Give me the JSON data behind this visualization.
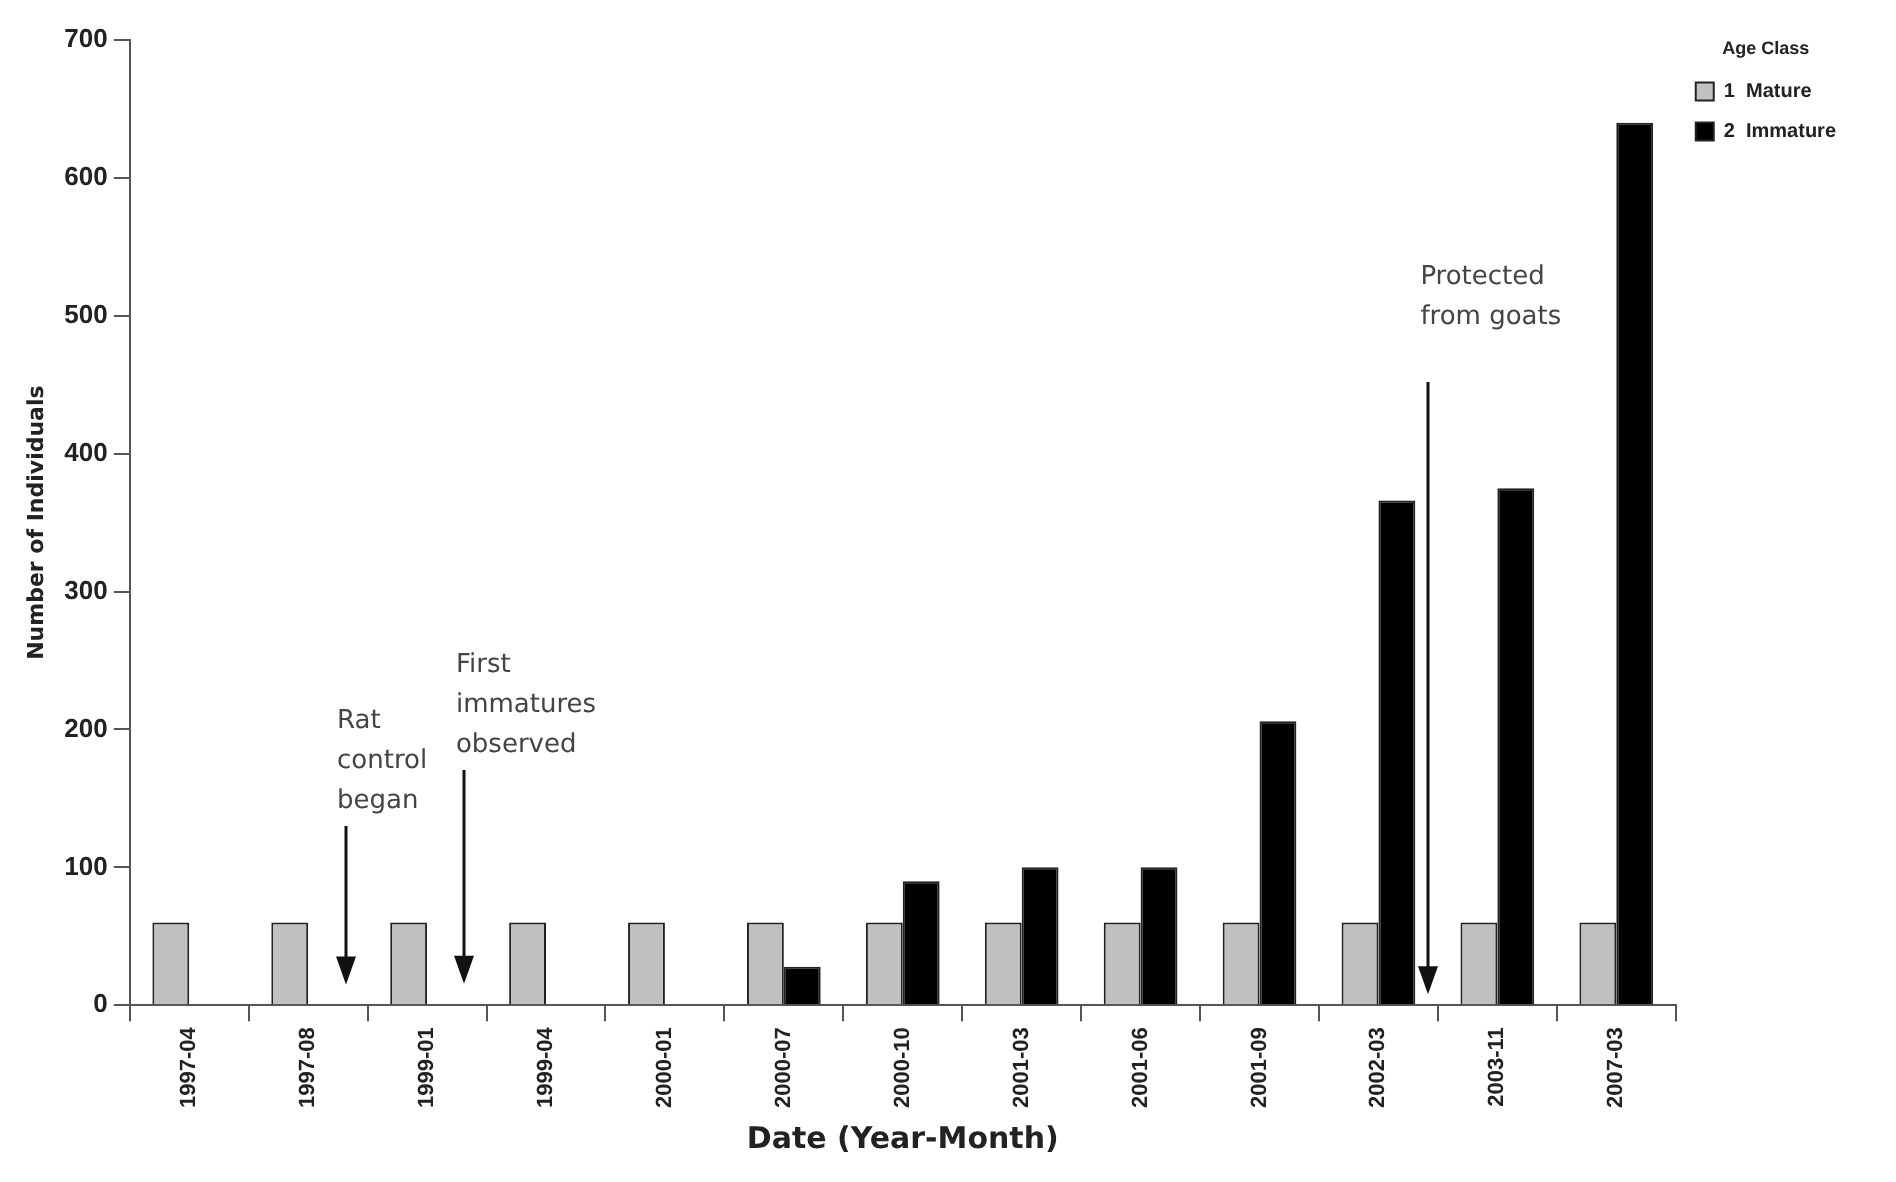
{
  "chart_data": {
    "type": "bar",
    "xlabel": "Date (Year-Month)",
    "ylabel": "Number of Individuals",
    "legend_title": "Age Class",
    "categories": [
      "1997-04",
      "1997-08",
      "1999-01",
      "1999-04",
      "2000-01",
      "2000-07",
      "2000-10",
      "2001-03",
      "2001-06",
      "2001-09",
      "2002-03",
      "2003-11",
      "2007-03"
    ],
    "series": [
      {
        "name": "1  Mature",
        "color": "#c0c0c0",
        "values": [
          60,
          60,
          60,
          60,
          60,
          60,
          60,
          60,
          60,
          60,
          60,
          60,
          60
        ]
      },
      {
        "name": "2  Immature",
        "color": "#000000",
        "values": [
          0,
          0,
          0,
          0,
          0,
          28,
          90,
          100,
          100,
          206,
          366,
          375,
          640
        ]
      }
    ],
    "ylim": [
      0,
      700
    ],
    "yticks": [
      0,
      100,
      200,
      300,
      400,
      500,
      600,
      700
    ],
    "grid": false,
    "legend": "top right",
    "annotations": [
      "Rat control began",
      "First immatures observed",
      "Protected from goats"
    ]
  }
}
